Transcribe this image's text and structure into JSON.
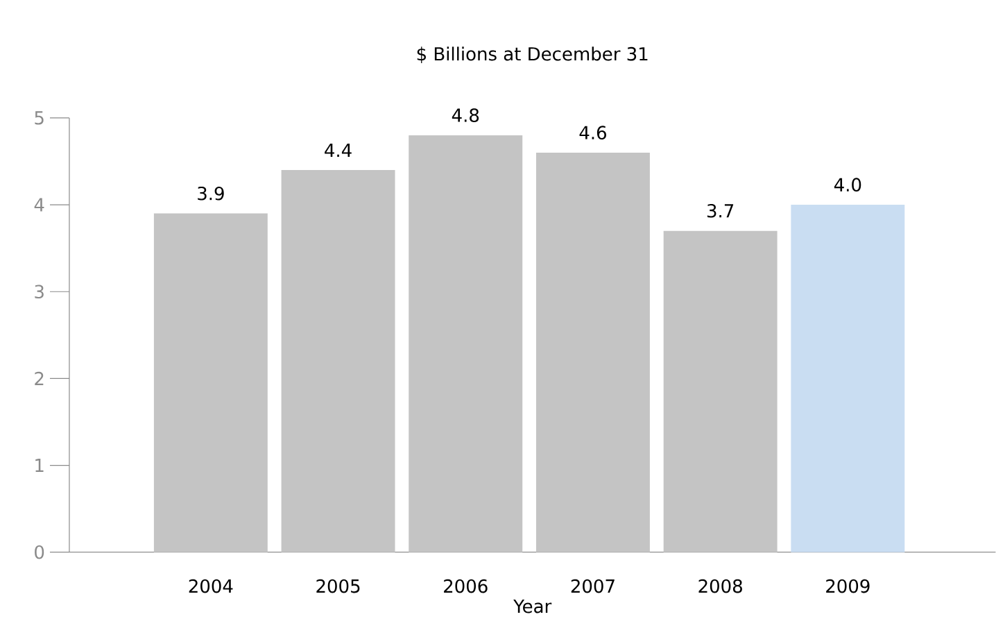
{
  "chart_data": {
    "type": "bar",
    "title": "$ Billions at December 31",
    "xlabel": "Year",
    "categories": [
      "2004",
      "2005",
      "2006",
      "2007",
      "2008",
      "2009"
    ],
    "values": [
      3.9,
      4.4,
      4.8,
      4.6,
      3.7,
      4.0
    ],
    "colors": [
      "#c4c4c4",
      "#c4c4c4",
      "#c4c4c4",
      "#c4c4c4",
      "#c4c4c4",
      "#c9ddf2"
    ],
    "value_labels": [
      "3.9",
      "4.4",
      "4.8",
      "4.6",
      "3.7",
      "4.0"
    ],
    "ylim": [
      0,
      5
    ],
    "yticks": [
      0,
      1,
      2,
      3,
      4,
      5
    ],
    "grid": false
  }
}
